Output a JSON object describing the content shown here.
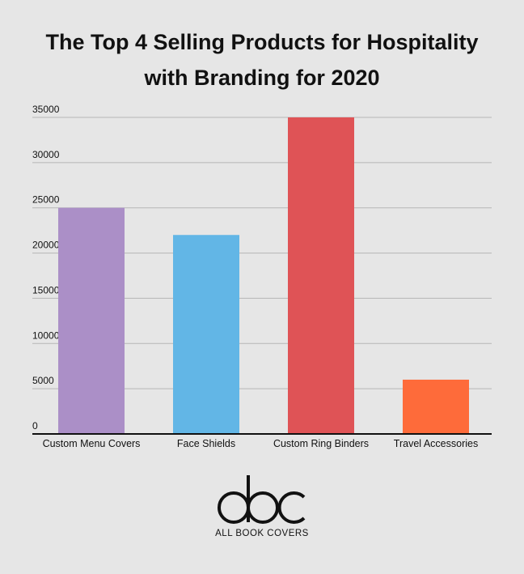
{
  "chart_data": {
    "type": "bar",
    "title_lines": [
      "The Top 4 Selling Products for Hospitality",
      "with Branding for 2020"
    ],
    "categories": [
      "Custom Menu Covers",
      "Face Shields",
      "Custom Ring Binders",
      "Travel Accessories"
    ],
    "values": [
      25000,
      22000,
      35000,
      6000
    ],
    "colors": [
      "#ab8fc7",
      "#62b6e6",
      "#df5356",
      "#fe6b3a"
    ],
    "yticks": [
      0,
      5000,
      10000,
      15000,
      20000,
      25000,
      30000,
      35000
    ],
    "ylim": [
      0,
      35000
    ],
    "grid": true,
    "legend": "none"
  },
  "logo": {
    "mark": "abc",
    "tagline": "ALL BOOK COVERS"
  }
}
